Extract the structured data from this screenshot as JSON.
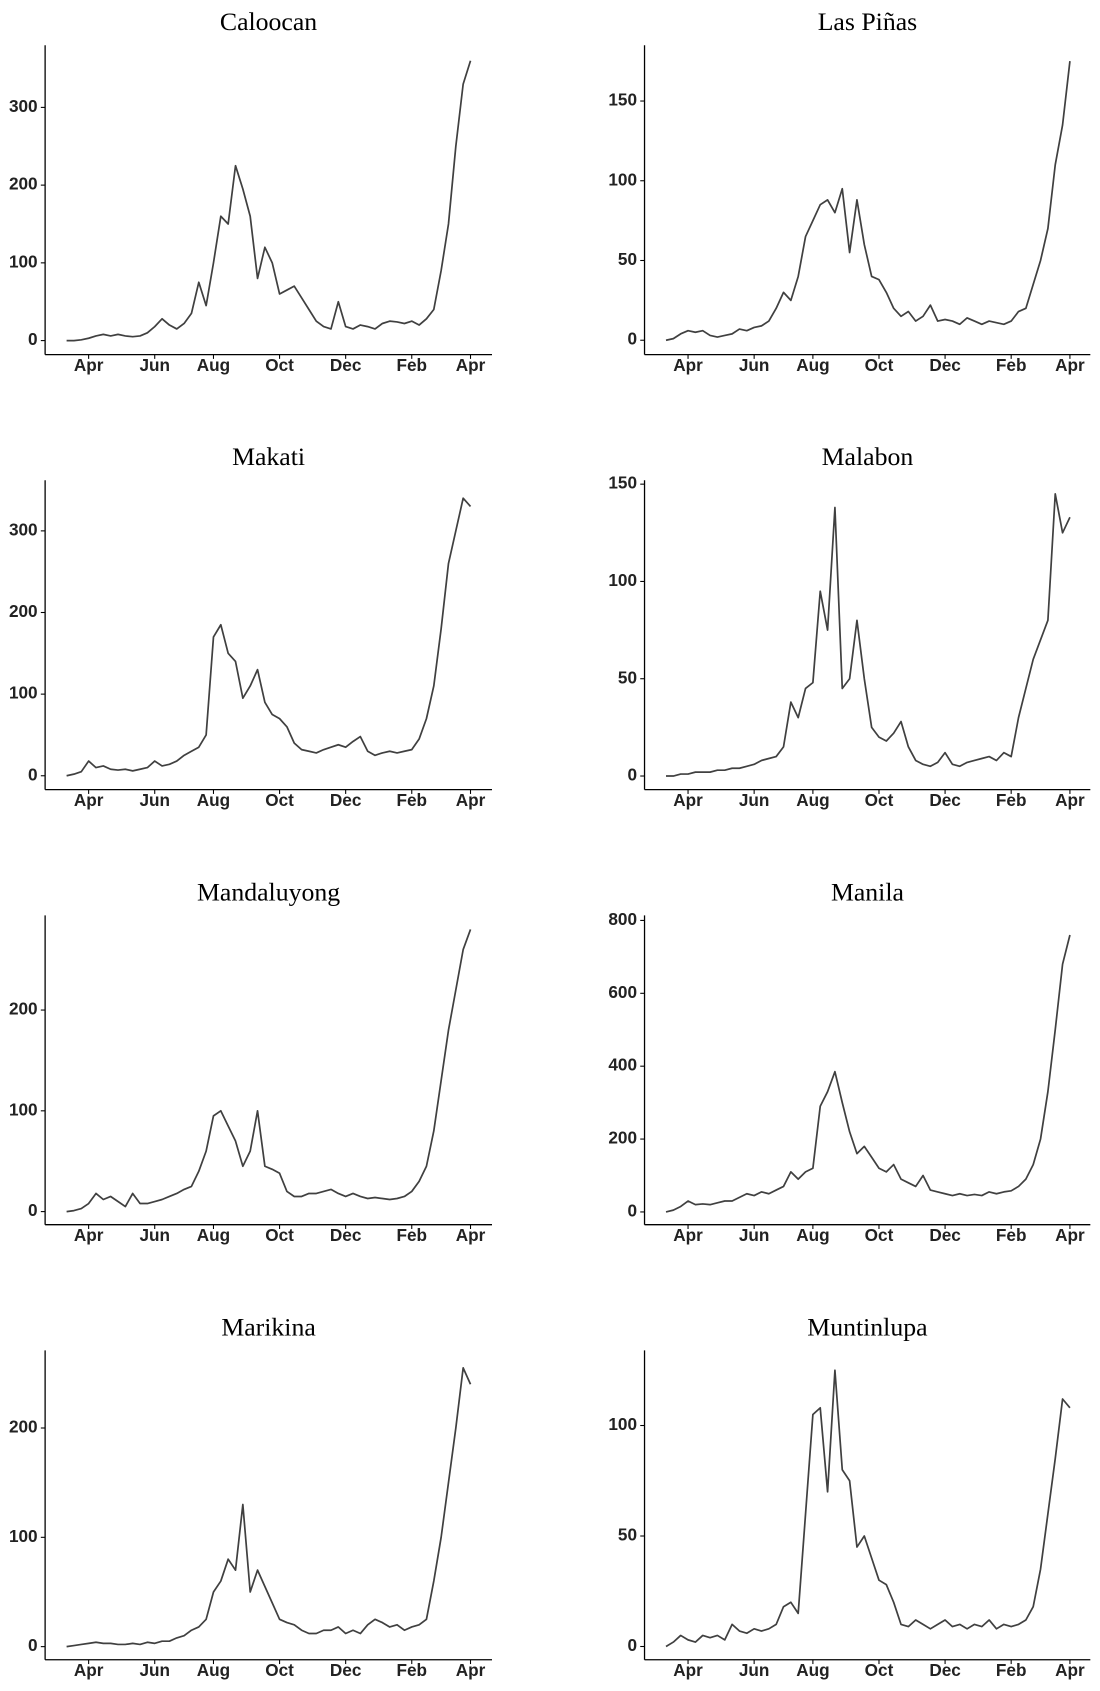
{
  "chart_data": [
    {
      "type": "line",
      "title": "Caloocan",
      "color": "#404040",
      "categories": [
        null,
        null,
        null,
        "Apr",
        null,
        null,
        null,
        null,
        null,
        null,
        null,
        null,
        "Jun",
        null,
        null,
        null,
        null,
        null,
        null,
        null,
        "Aug",
        null,
        null,
        null,
        null,
        null,
        null,
        null,
        null,
        "Oct",
        null,
        null,
        null,
        null,
        null,
        null,
        null,
        null,
        "Dec",
        null,
        null,
        null,
        null,
        null,
        null,
        null,
        null,
        "Feb",
        null,
        null,
        null,
        null,
        null,
        null,
        null,
        "Apr"
      ],
      "values": [
        0,
        0,
        1,
        3,
        6,
        8,
        6,
        8,
        6,
        5,
        6,
        10,
        18,
        28,
        20,
        15,
        22,
        35,
        75,
        45,
        100,
        160,
        150,
        225,
        195,
        160,
        80,
        120,
        100,
        60,
        65,
        70,
        55,
        40,
        25,
        18,
        15,
        50,
        18,
        15,
        20,
        18,
        15,
        22,
        25,
        24,
        22,
        25,
        20,
        28,
        40,
        90,
        150,
        250,
        330,
        360
      ],
      "ylim": [
        -18,
        380
      ],
      "yticks": [
        0,
        100,
        200,
        300
      ]
    },
    {
      "type": "line",
      "title": "Las Piñas",
      "color": "#404040",
      "categories": [
        null,
        null,
        null,
        "Apr",
        null,
        null,
        null,
        null,
        null,
        null,
        null,
        null,
        "Jun",
        null,
        null,
        null,
        null,
        null,
        null,
        null,
        "Aug",
        null,
        null,
        null,
        null,
        null,
        null,
        null,
        null,
        "Oct",
        null,
        null,
        null,
        null,
        null,
        null,
        null,
        null,
        "Dec",
        null,
        null,
        null,
        null,
        null,
        null,
        null,
        null,
        "Feb",
        null,
        null,
        null,
        null,
        null,
        null,
        null,
        "Apr"
      ],
      "values": [
        0,
        1,
        4,
        6,
        5,
        6,
        3,
        2,
        3,
        4,
        7,
        6,
        8,
        9,
        12,
        20,
        30,
        25,
        40,
        65,
        75,
        85,
        88,
        80,
        95,
        55,
        88,
        60,
        40,
        38,
        30,
        20,
        15,
        18,
        12,
        15,
        22,
        12,
        13,
        12,
        10,
        14,
        12,
        10,
        12,
        11,
        10,
        12,
        18,
        20,
        35,
        50,
        70,
        110,
        135,
        175
      ],
      "ylim": [
        -9,
        185
      ],
      "yticks": [
        0,
        50,
        100,
        150
      ]
    },
    {
      "type": "line",
      "title": "Makati",
      "color": "#404040",
      "categories": [
        null,
        null,
        null,
        "Apr",
        null,
        null,
        null,
        null,
        null,
        null,
        null,
        null,
        "Jun",
        null,
        null,
        null,
        null,
        null,
        null,
        null,
        "Aug",
        null,
        null,
        null,
        null,
        null,
        null,
        null,
        null,
        "Oct",
        null,
        null,
        null,
        null,
        null,
        null,
        null,
        null,
        "Dec",
        null,
        null,
        null,
        null,
        null,
        null,
        null,
        null,
        "Feb",
        null,
        null,
        null,
        null,
        null,
        null,
        null,
        "Apr"
      ],
      "values": [
        0,
        2,
        5,
        18,
        10,
        12,
        8,
        7,
        8,
        6,
        8,
        10,
        18,
        12,
        14,
        18,
        25,
        30,
        35,
        50,
        170,
        185,
        150,
        140,
        95,
        110,
        130,
        90,
        75,
        70,
        60,
        40,
        32,
        30,
        28,
        32,
        35,
        38,
        35,
        42,
        48,
        30,
        25,
        28,
        30,
        28,
        30,
        32,
        45,
        70,
        110,
        180,
        260,
        300,
        340,
        330
      ],
      "ylim": [
        -17,
        362
      ],
      "yticks": [
        0,
        100,
        200,
        300
      ]
    },
    {
      "type": "line",
      "title": "Malabon",
      "color": "#404040",
      "categories": [
        null,
        null,
        null,
        "Apr",
        null,
        null,
        null,
        null,
        null,
        null,
        null,
        null,
        "Jun",
        null,
        null,
        null,
        null,
        null,
        null,
        null,
        "Aug",
        null,
        null,
        null,
        null,
        null,
        null,
        null,
        null,
        "Oct",
        null,
        null,
        null,
        null,
        null,
        null,
        null,
        null,
        "Dec",
        null,
        null,
        null,
        null,
        null,
        null,
        null,
        null,
        "Feb",
        null,
        null,
        null,
        null,
        null,
        null,
        null,
        "Apr"
      ],
      "values": [
        0,
        0,
        1,
        1,
        2,
        2,
        2,
        3,
        3,
        4,
        4,
        5,
        6,
        8,
        9,
        10,
        15,
        38,
        30,
        45,
        48,
        95,
        75,
        138,
        45,
        50,
        80,
        50,
        25,
        20,
        18,
        22,
        28,
        15,
        8,
        6,
        5,
        7,
        12,
        6,
        5,
        7,
        8,
        9,
        10,
        8,
        12,
        10,
        30,
        45,
        60,
        70,
        80,
        145,
        125,
        133
      ],
      "ylim": [
        -7,
        152
      ],
      "yticks": [
        0,
        50,
        100,
        150
      ]
    },
    {
      "type": "line",
      "title": "Mandaluyong",
      "color": "#404040",
      "categories": [
        null,
        null,
        null,
        "Apr",
        null,
        null,
        null,
        null,
        null,
        null,
        null,
        null,
        "Jun",
        null,
        null,
        null,
        null,
        null,
        null,
        null,
        "Aug",
        null,
        null,
        null,
        null,
        null,
        null,
        null,
        null,
        "Oct",
        null,
        null,
        null,
        null,
        null,
        null,
        null,
        null,
        "Dec",
        null,
        null,
        null,
        null,
        null,
        null,
        null,
        null,
        "Feb",
        null,
        null,
        null,
        null,
        null,
        null,
        null,
        "Apr"
      ],
      "values": [
        0,
        1,
        3,
        8,
        18,
        12,
        15,
        10,
        5,
        18,
        8,
        8,
        10,
        12,
        15,
        18,
        22,
        25,
        40,
        60,
        95,
        100,
        85,
        70,
        45,
        60,
        100,
        45,
        42,
        38,
        20,
        15,
        15,
        18,
        18,
        20,
        22,
        18,
        15,
        18,
        15,
        13,
        14,
        13,
        12,
        13,
        15,
        20,
        30,
        45,
        80,
        130,
        180,
        220,
        260,
        280
      ],
      "ylim": [
        -13,
        294
      ],
      "yticks": [
        0,
        100,
        200
      ]
    },
    {
      "type": "line",
      "title": "Manila",
      "color": "#404040",
      "categories": [
        null,
        null,
        null,
        "Apr",
        null,
        null,
        null,
        null,
        null,
        null,
        null,
        null,
        "Jun",
        null,
        null,
        null,
        null,
        null,
        null,
        null,
        "Aug",
        null,
        null,
        null,
        null,
        null,
        null,
        null,
        null,
        "Oct",
        null,
        null,
        null,
        null,
        null,
        null,
        null,
        null,
        "Dec",
        null,
        null,
        null,
        null,
        null,
        null,
        null,
        null,
        "Feb",
        null,
        null,
        null,
        null,
        null,
        null,
        null,
        "Apr"
      ],
      "values": [
        0,
        5,
        15,
        30,
        20,
        22,
        20,
        25,
        30,
        30,
        40,
        50,
        45,
        55,
        50,
        60,
        70,
        110,
        90,
        110,
        120,
        290,
        330,
        385,
        300,
        220,
        160,
        180,
        150,
        120,
        110,
        130,
        90,
        80,
        70,
        100,
        60,
        55,
        50,
        45,
        50,
        45,
        48,
        45,
        55,
        50,
        55,
        58,
        70,
        90,
        130,
        200,
        330,
        500,
        680,
        760
      ],
      "ylim": [
        -35,
        814
      ],
      "yticks": [
        0,
        200,
        400,
        600,
        800
      ]
    },
    {
      "type": "line",
      "title": "Marikina",
      "color": "#404040",
      "categories": [
        null,
        null,
        null,
        "Apr",
        null,
        null,
        null,
        null,
        null,
        null,
        null,
        null,
        "Jun",
        null,
        null,
        null,
        null,
        null,
        null,
        null,
        "Aug",
        null,
        null,
        null,
        null,
        null,
        null,
        null,
        null,
        "Oct",
        null,
        null,
        null,
        null,
        null,
        null,
        null,
        null,
        "Dec",
        null,
        null,
        null,
        null,
        null,
        null,
        null,
        null,
        "Feb",
        null,
        null,
        null,
        null,
        null,
        null,
        null,
        "Apr"
      ],
      "values": [
        0,
        1,
        2,
        3,
        4,
        3,
        3,
        2,
        2,
        3,
        2,
        4,
        3,
        5,
        5,
        8,
        10,
        15,
        18,
        25,
        50,
        60,
        80,
        70,
        130,
        50,
        70,
        55,
        40,
        25,
        22,
        20,
        15,
        12,
        12,
        15,
        15,
        18,
        12,
        15,
        12,
        20,
        25,
        22,
        18,
        20,
        15,
        18,
        20,
        25,
        60,
        100,
        150,
        200,
        255,
        240
      ],
      "ylim": [
        -12,
        271
      ],
      "yticks": [
        0,
        100,
        200
      ]
    },
    {
      "type": "line",
      "title": "Muntinlupa",
      "color": "#404040",
      "categories": [
        null,
        null,
        null,
        "Apr",
        null,
        null,
        null,
        null,
        null,
        null,
        null,
        null,
        "Jun",
        null,
        null,
        null,
        null,
        null,
        null,
        null,
        "Aug",
        null,
        null,
        null,
        null,
        null,
        null,
        null,
        null,
        "Oct",
        null,
        null,
        null,
        null,
        null,
        null,
        null,
        null,
        "Dec",
        null,
        null,
        null,
        null,
        null,
        null,
        null,
        null,
        "Feb",
        null,
        null,
        null,
        null,
        null,
        null,
        null,
        "Apr"
      ],
      "values": [
        0,
        2,
        5,
        3,
        2,
        5,
        4,
        5,
        3,
        10,
        7,
        6,
        8,
        7,
        8,
        10,
        18,
        20,
        15,
        60,
        105,
        108,
        70,
        125,
        80,
        75,
        45,
        50,
        40,
        30,
        28,
        20,
        10,
        9,
        12,
        10,
        8,
        10,
        12,
        9,
        10,
        8,
        10,
        9,
        12,
        8,
        10,
        9,
        10,
        12,
        18,
        35,
        60,
        85,
        112,
        108
      ],
      "ylim": [
        -6,
        134
      ],
      "yticks": [
        0,
        50,
        100
      ]
    }
  ]
}
